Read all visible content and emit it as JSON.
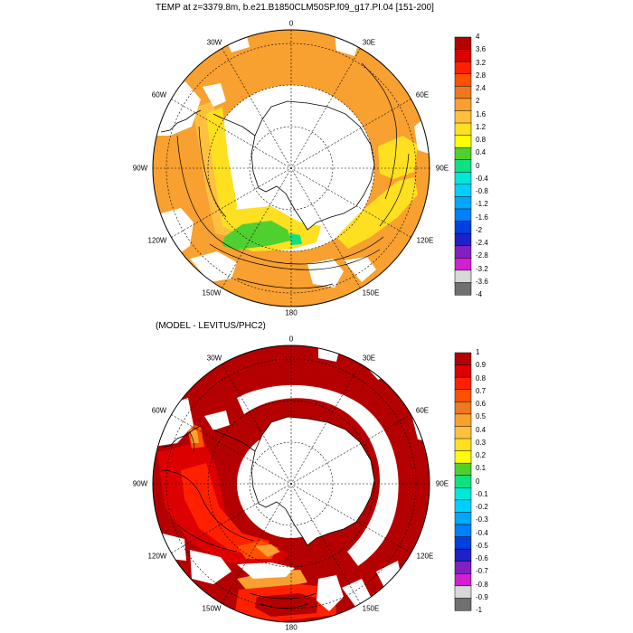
{
  "panels": [
    {
      "title": "TEMP at z=3379.8m, b.e21.B1850CLM50SP.f09_g17.PI.04 [151-200]",
      "lon_labels": {
        "n": "0",
        "ne30": "30E",
        "ne60": "60E",
        "e90": "90E",
        "e120": "120E",
        "e150": "150E",
        "s": "180",
        "w150": "150W",
        "w120": "120W",
        "w90": "90W",
        "w60": "60W",
        "w30": "30W"
      },
      "colorbar": {
        "labels": [
          "4",
          "3.6",
          "3.2",
          "2.8",
          "2.4",
          "2",
          "1.6",
          "1.2",
          "0.8",
          "0.4",
          "0",
          "-0.4",
          "-0.8",
          "-1.2",
          "-1.6",
          "-2",
          "-2.4",
          "-2.8",
          "-3.2",
          "-3.6",
          "-4"
        ],
        "colors": [
          "#b40000",
          "#dc0000",
          "#ff2000",
          "#ff5000",
          "#f07820",
          "#f8a030",
          "#ffc040",
          "#ffe020",
          "#ffff00",
          "#50d030",
          "#10e080",
          "#00e8d8",
          "#00d0ff",
          "#00a8ff",
          "#0080ff",
          "#0040e0",
          "#2020c8",
          "#8020c0",
          "#d020d0",
          "#d8d8d8",
          "#707070"
        ]
      }
    },
    {
      "title": "(MODEL - LEVITUS/PHC2)",
      "lon_labels": {
        "n": "0",
        "ne30": "30E",
        "ne60": "60E",
        "e90": "90E",
        "e120": "120E",
        "e150": "150E",
        "s": "180",
        "w150": "150W",
        "w120": "120W",
        "w90": "90W",
        "w60": "60W",
        "w30": "30W"
      },
      "colorbar": {
        "labels": [
          "1",
          "0.9",
          "0.8",
          "0.7",
          "0.6",
          "0.5",
          "0.4",
          "0.3",
          "0.2",
          "0.1",
          "0",
          "-0.1",
          "-0.2",
          "-0.3",
          "-0.4",
          "-0.5",
          "-0.6",
          "-0.7",
          "-0.8",
          "-0.9",
          "-1"
        ],
        "colors": [
          "#b40000",
          "#dc0000",
          "#ff2000",
          "#ff5000",
          "#f07820",
          "#f8a030",
          "#ffc040",
          "#ffe020",
          "#ffff00",
          "#50d030",
          "#10e080",
          "#00e8d8",
          "#00d0ff",
          "#00a8ff",
          "#0080ff",
          "#0040e0",
          "#2020c8",
          "#8020c0",
          "#d020d0",
          "#d8d8d8",
          "#707070"
        ]
      }
    }
  ],
  "colors": {
    "land": "#ffffff",
    "missing": "#ffffff",
    "coast": "#000000"
  }
}
